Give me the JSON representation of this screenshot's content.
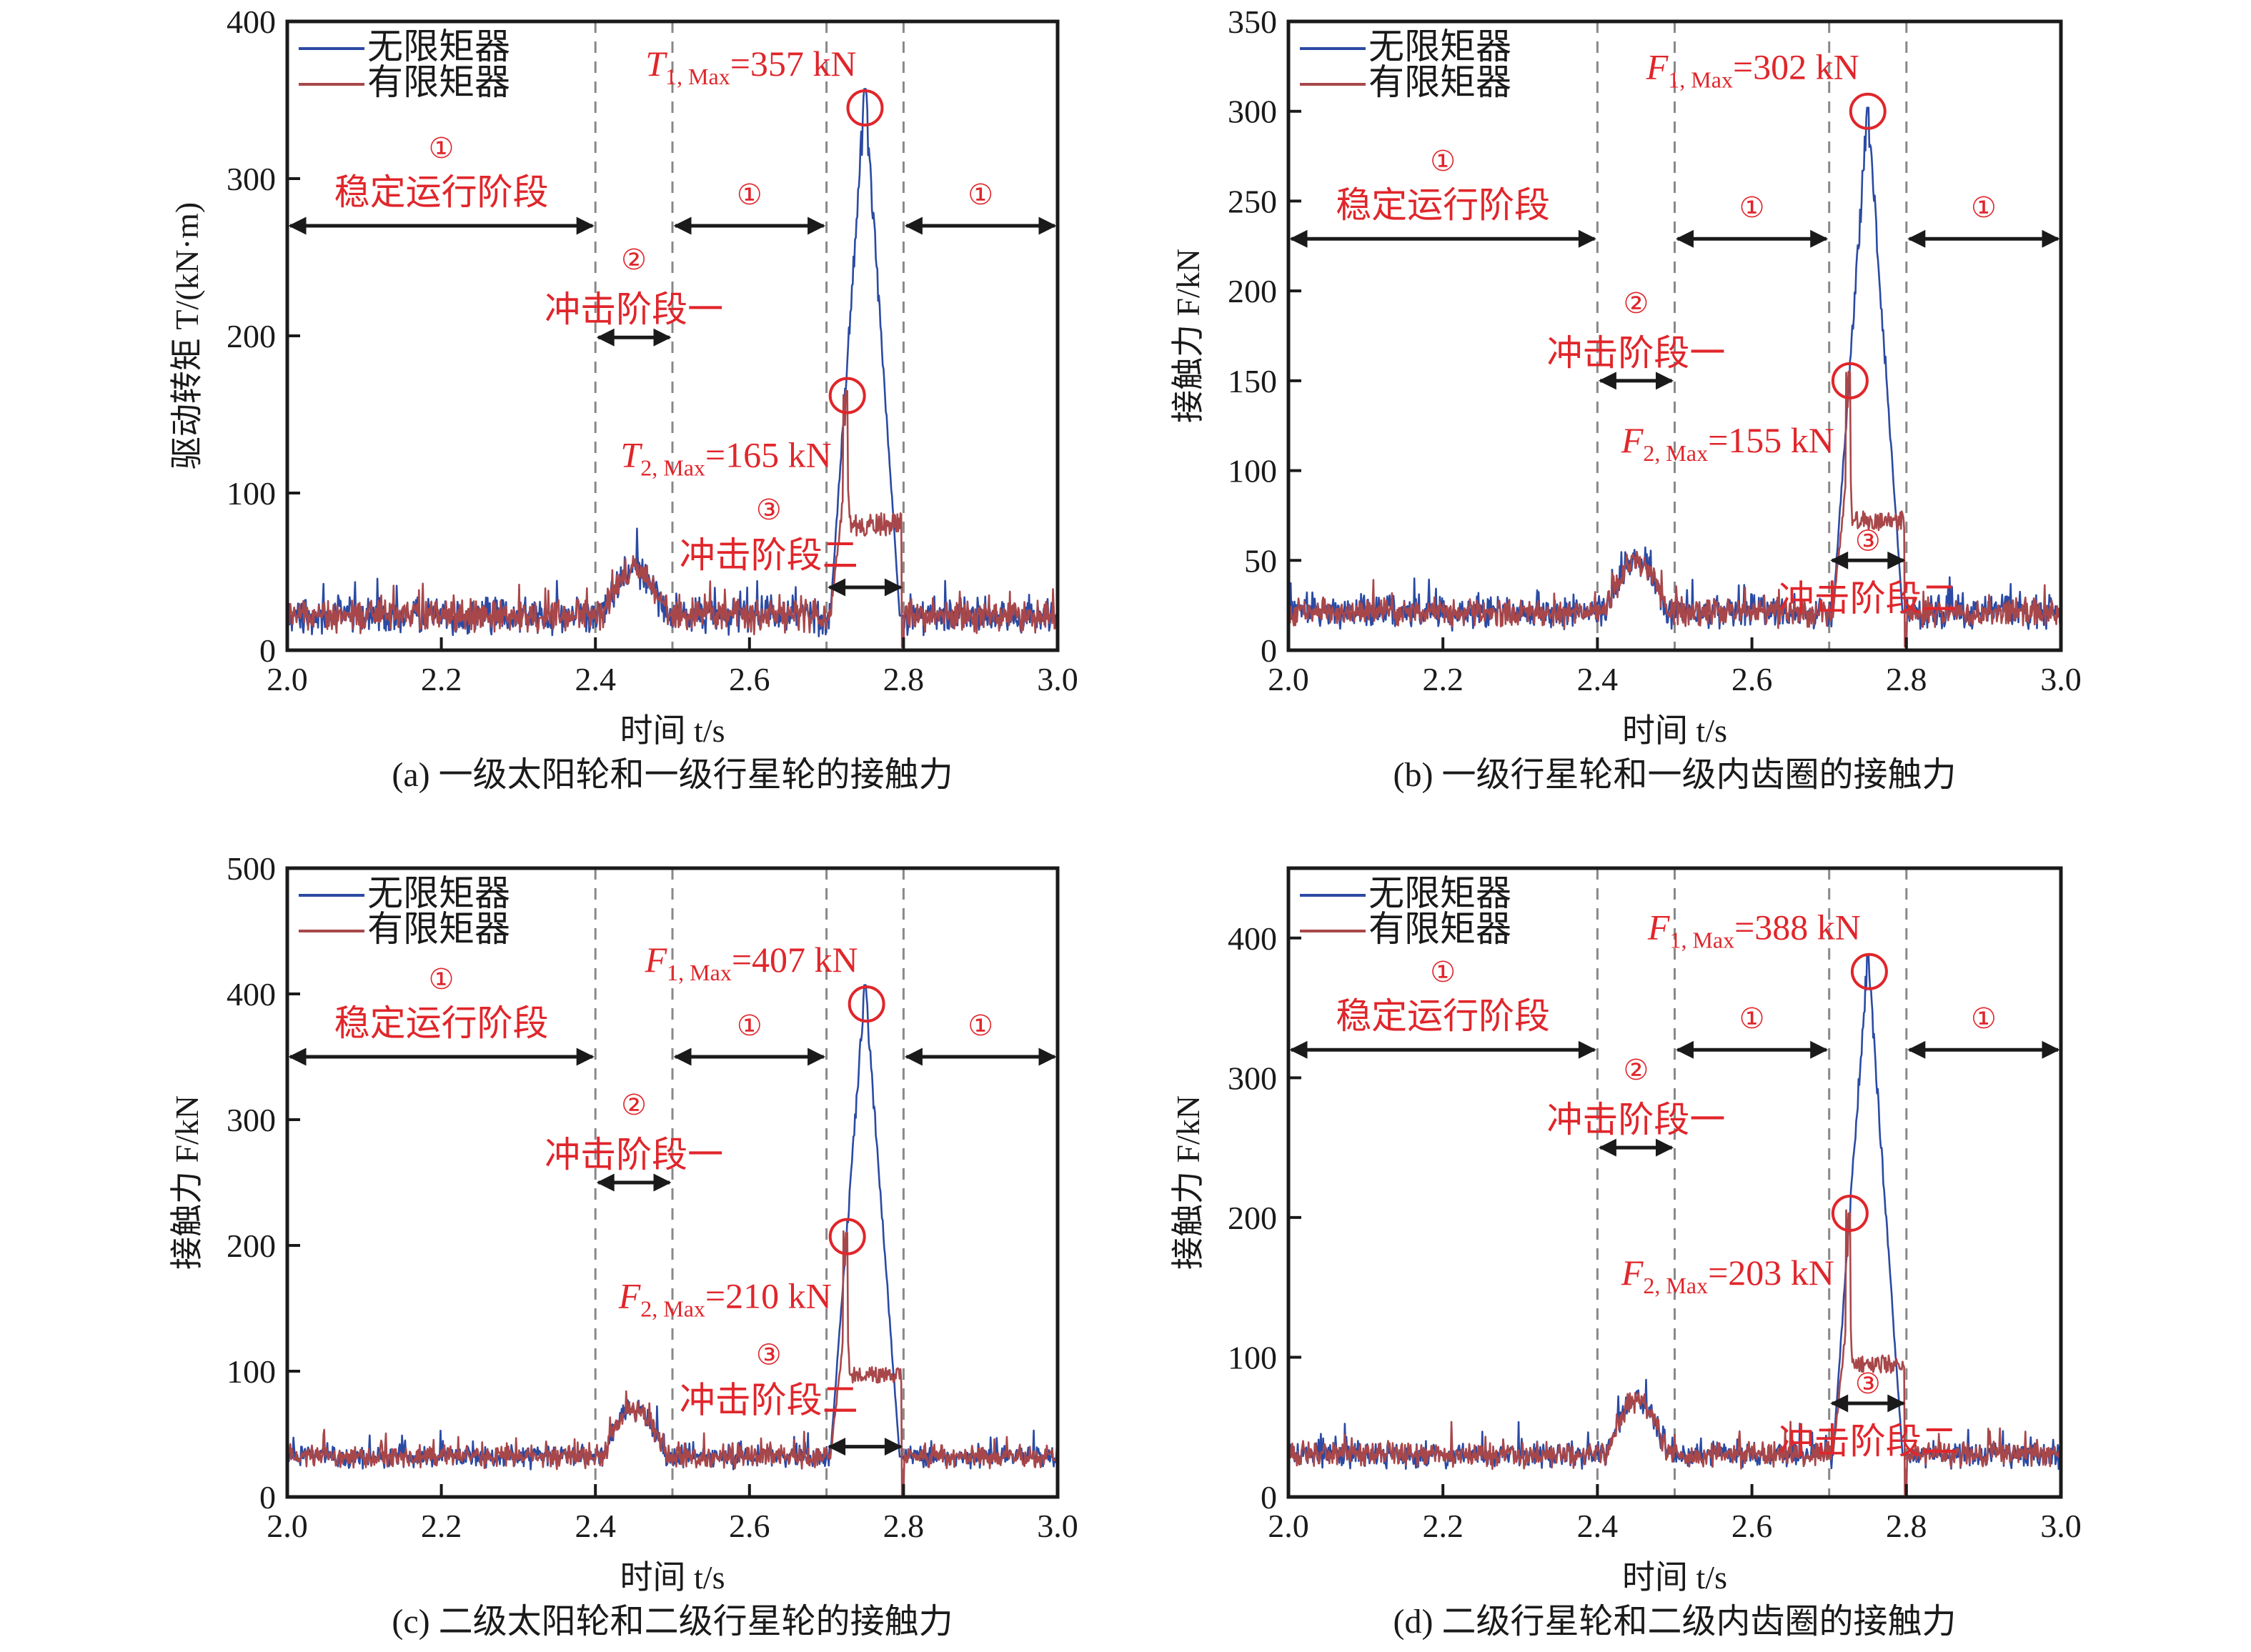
{
  "figure": {
    "colors": {
      "no_limiter": "#2b4aa3",
      "with_limiter": "#a8474a",
      "annotation": "#e0262b",
      "axis": "#1a1a1a",
      "divider": "#888888"
    },
    "legend": [
      "无限矩器",
      "有限矩器"
    ],
    "stage_labels": {
      "stage1_num": "①",
      "stage1_text": "稳定运行阶段",
      "stage2_num": "②",
      "stage2_text": "冲击阶段一",
      "stage3_num": "③",
      "stage3_text": "冲击阶段二"
    }
  },
  "chart_data": [
    {
      "id": "a",
      "type": "line",
      "caption": "(a) 一级太阳轮和一级行星轮的接触力",
      "xlabel": "时间 t/s",
      "ylabel": "驱动转矩 T/(kN·m)",
      "xlim": [
        2.0,
        3.0
      ],
      "ylim": [
        0,
        400
      ],
      "xticks": [
        "2.0",
        "2.2",
        "2.4",
        "2.6",
        "2.8",
        "3.0"
      ],
      "yticks": [
        "0",
        "100",
        "200",
        "300",
        "400"
      ],
      "dividers_x": [
        2.4,
        2.5,
        2.7,
        2.8
      ],
      "legend": "top-left",
      "series": [
        {
          "name": "无限矩器",
          "baseline": 22,
          "bump2_peak": 52,
          "impact_peak": 357,
          "noise": 9
        },
        {
          "name": "有限矩器",
          "baseline": 22,
          "bump2_peak": 52,
          "impact_peak": 165,
          "plateau": 80,
          "noise": 8
        }
      ],
      "annotations": {
        "max1": {
          "sym": "T",
          "sub": "1, Max",
          "value": "=357 kN",
          "x": 2.75,
          "y": 345
        },
        "max2": {
          "sym": "T",
          "sub": "2, Max",
          "value": "=165 kN",
          "x": 2.727,
          "y": 162
        },
        "stage1_arrow_y": 270,
        "stage2_arrow_y": 199,
        "stage3_arrow_y": 40
      }
    },
    {
      "id": "b",
      "type": "line",
      "caption": "(b) 一级行星轮和一级内齿圈的接触力",
      "xlabel": "时间 t/s",
      "ylabel": "接触力 F/kN",
      "xlim": [
        2.0,
        3.0
      ],
      "ylim": [
        0,
        350
      ],
      "xticks": [
        "2.0",
        "2.2",
        "2.4",
        "2.6",
        "2.8",
        "3.0"
      ],
      "yticks": [
        "0",
        "50",
        "100",
        "150",
        "200",
        "250",
        "300",
        "350"
      ],
      "dividers_x": [
        2.4,
        2.5,
        2.7,
        2.8
      ],
      "legend": "top-left",
      "series": [
        {
          "name": "无限矩器",
          "baseline": 21,
          "bump2_peak": 50,
          "impact_peak": 302,
          "noise": 7
        },
        {
          "name": "有限矩器",
          "baseline": 21,
          "bump2_peak": 50,
          "impact_peak": 155,
          "plateau": 72,
          "noise": 6
        }
      ],
      "annotations": {
        "max1": {
          "sym": "F",
          "sub": "1, Max",
          "value": "=302 kN",
          "x": 2.75,
          "y": 300
        },
        "max2": {
          "sym": "F",
          "sub": "2, Max",
          "value": "=155 kN",
          "x": 2.727,
          "y": 150
        },
        "stage1_arrow_y": 229,
        "stage2_arrow_y": 150,
        "stage3_arrow_y": 50
      }
    },
    {
      "id": "c",
      "type": "line",
      "caption": "(c) 二级太阳轮和二级行星轮的接触力",
      "xlabel": "时间 t/s",
      "ylabel": "接触力 F/kN",
      "xlim": [
        2.0,
        3.0
      ],
      "ylim": [
        0,
        500
      ],
      "xticks": [
        "2.0",
        "2.2",
        "2.4",
        "2.6",
        "2.8",
        "3.0"
      ],
      "yticks": [
        "0",
        "100",
        "200",
        "300",
        "400",
        "500"
      ],
      "dividers_x": [
        2.4,
        2.5,
        2.7,
        2.8
      ],
      "legend": "top-left",
      "series": [
        {
          "name": "无限矩器",
          "baseline": 32,
          "bump2_peak": 70,
          "impact_peak": 407,
          "noise": 7
        },
        {
          "name": "有限矩器",
          "baseline": 32,
          "bump2_peak": 70,
          "impact_peak": 210,
          "plateau": 97,
          "noise": 7
        }
      ],
      "annotations": {
        "max1": {
          "sym": "F",
          "sub": "1, Max",
          "value": "=407 kN",
          "x": 2.752,
          "y": 392
        },
        "max2": {
          "sym": "F",
          "sub": "2, Max",
          "value": "=210 kN",
          "x": 2.727,
          "y": 207
        },
        "stage1_arrow_y": 350,
        "stage2_arrow_y": 250,
        "stage3_arrow_y": 40
      }
    },
    {
      "id": "d",
      "type": "line",
      "caption": "(d) 二级行星轮和二级内齿圈的接触力",
      "xlabel": "时间 t/s",
      "ylabel": "接触力 F/kN",
      "xlim": [
        2.0,
        3.0
      ],
      "ylim": [
        0,
        450
      ],
      "xticks": [
        "2.0",
        "2.2",
        "2.4",
        "2.6",
        "2.8",
        "3.0"
      ],
      "yticks": [
        "0",
        "100",
        "200",
        "300",
        "400"
      ],
      "dividers_x": [
        2.4,
        2.5,
        2.7,
        2.8
      ],
      "legend": "top-left",
      "series": [
        {
          "name": "无限矩器",
          "baseline": 30,
          "bump2_peak": 68,
          "impact_peak": 388,
          "noise": 7
        },
        {
          "name": "有限矩器",
          "baseline": 30,
          "bump2_peak": 68,
          "impact_peak": 203,
          "plateau": 95,
          "noise": 7
        }
      ],
      "annotations": {
        "max1": {
          "sym": "F",
          "sub": "1, Max",
          "value": "=388 kN",
          "x": 2.752,
          "y": 376
        },
        "max2": {
          "sym": "F",
          "sub": "2, Max",
          "value": "=203 kN",
          "x": 2.727,
          "y": 203
        },
        "stage1_arrow_y": 320,
        "stage2_arrow_y": 250,
        "stage3_arrow_y": 67
      }
    }
  ]
}
